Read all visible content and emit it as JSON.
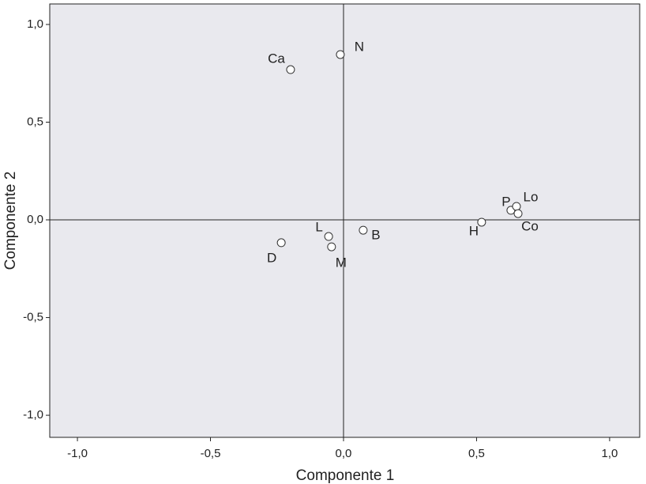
{
  "chart_data": {
    "type": "scatter",
    "x_label": "Componente 1",
    "y_label": "Componente 2",
    "labels": [
      "N",
      "Ca",
      "L",
      "M",
      "D",
      "B",
      "H",
      "P",
      "Lo",
      "Co"
    ],
    "x": [
      -0.012,
      -0.199,
      -0.056,
      -0.045,
      -0.234,
      0.074,
      0.519,
      0.629,
      0.65,
      0.656
    ],
    "values": [
      0.846,
      0.769,
      -0.085,
      -0.138,
      -0.117,
      -0.053,
      -0.012,
      0.049,
      0.069,
      0.032
    ],
    "xlim": [
      -1.104,
      1.113
    ],
    "ylim": [
      -1.113,
      1.105
    ],
    "xticks": [
      {
        "value": -1.0,
        "label": "-1,0"
      },
      {
        "value": -0.5,
        "label": "-0,5"
      },
      {
        "value": 0.0,
        "label": "0,0"
      },
      {
        "value": 0.5,
        "label": "0,5"
      },
      {
        "value": 1.0,
        "label": "1,0"
      }
    ],
    "yticks": [
      {
        "value": -1.0,
        "label": "-1,0"
      },
      {
        "value": -0.5,
        "label": "-0,5"
      },
      {
        "value": 0.0,
        "label": "0,0"
      },
      {
        "value": 0.5,
        "label": "0,5"
      },
      {
        "value": 1.0,
        "label": "1,0"
      }
    ],
    "plot_background": "#e9e9ee",
    "marker_fill": "#ffffff",
    "marker_stroke": "#333333"
  }
}
